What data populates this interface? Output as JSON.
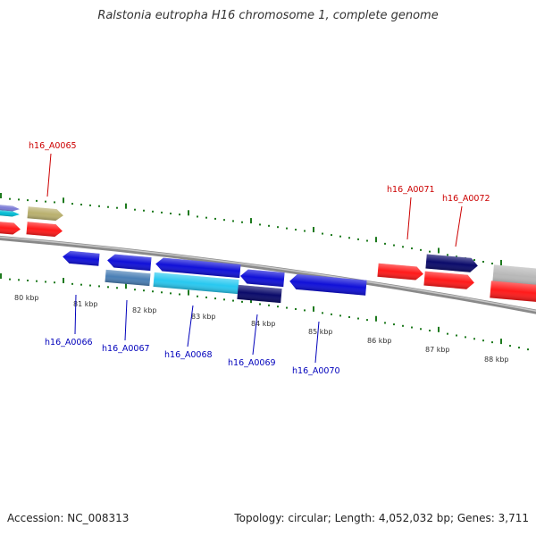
{
  "title": "Ralstonia eutropha H16 chromosome 1, complete genome",
  "footer": {
    "accession": "Accession: NC_008313",
    "summary": "Topology: circular; Length: 4,052,032 bp; Genes: 3,711"
  },
  "colors": {
    "backbone": "#8a8a8a",
    "tick": "#1e7a1e",
    "forward_label": "#cc0000",
    "reverse_label": "#0000bb",
    "tick_label": "#333333"
  },
  "ruler": {
    "tick_labels": [
      "80 kbp",
      "81 kbp",
      "82 kbp",
      "83 kbp",
      "84 kbp",
      "85 kbp",
      "86 kbp",
      "87 kbp",
      "88 kbp"
    ]
  },
  "gene_labels": [
    {
      "text": "h16_A0065",
      "strand": "forward"
    },
    {
      "text": "h16_A0071",
      "strand": "forward"
    },
    {
      "text": "h16_A0072",
      "strand": "forward"
    },
    {
      "text": "h16_A0066",
      "strand": "reverse"
    },
    {
      "text": "h16_A0067",
      "strand": "reverse"
    },
    {
      "text": "h16_A0068",
      "strand": "reverse"
    },
    {
      "text": "h16_A0069",
      "strand": "reverse"
    },
    {
      "text": "h16_A0070",
      "strand": "reverse"
    }
  ],
  "features": [
    {
      "color": "#7b7bd6",
      "strand": "forward"
    },
    {
      "color": "#00bcd4",
      "strand": "forward"
    },
    {
      "color": "#b9b06e",
      "strand": "forward"
    },
    {
      "color": "#ff1a1a",
      "strand": "forward"
    },
    {
      "color": "#ff1a1a",
      "strand": "forward"
    },
    {
      "color": "#1010d8",
      "strand": "reverse"
    },
    {
      "color": "#1010d8",
      "strand": "reverse"
    },
    {
      "color": "#1010d8",
      "strand": "reverse"
    },
    {
      "color": "#1010d8",
      "strand": "reverse"
    },
    {
      "color": "#1010d8",
      "strand": "reverse"
    },
    {
      "color": "#4a7fb5",
      "strand": "reverse"
    },
    {
      "color": "#28c8f0",
      "strand": "reverse"
    },
    {
      "color": "#0a0a6a",
      "strand": "reverse"
    },
    {
      "color": "#ff1a1a",
      "strand": "forward"
    },
    {
      "color": "#0a0a6a",
      "strand": "forward"
    },
    {
      "color": "#ff1a1a",
      "strand": "forward"
    },
    {
      "color": "#b8b8b8",
      "strand": "forward"
    },
    {
      "color": "#ff1a1a",
      "strand": "forward"
    }
  ]
}
